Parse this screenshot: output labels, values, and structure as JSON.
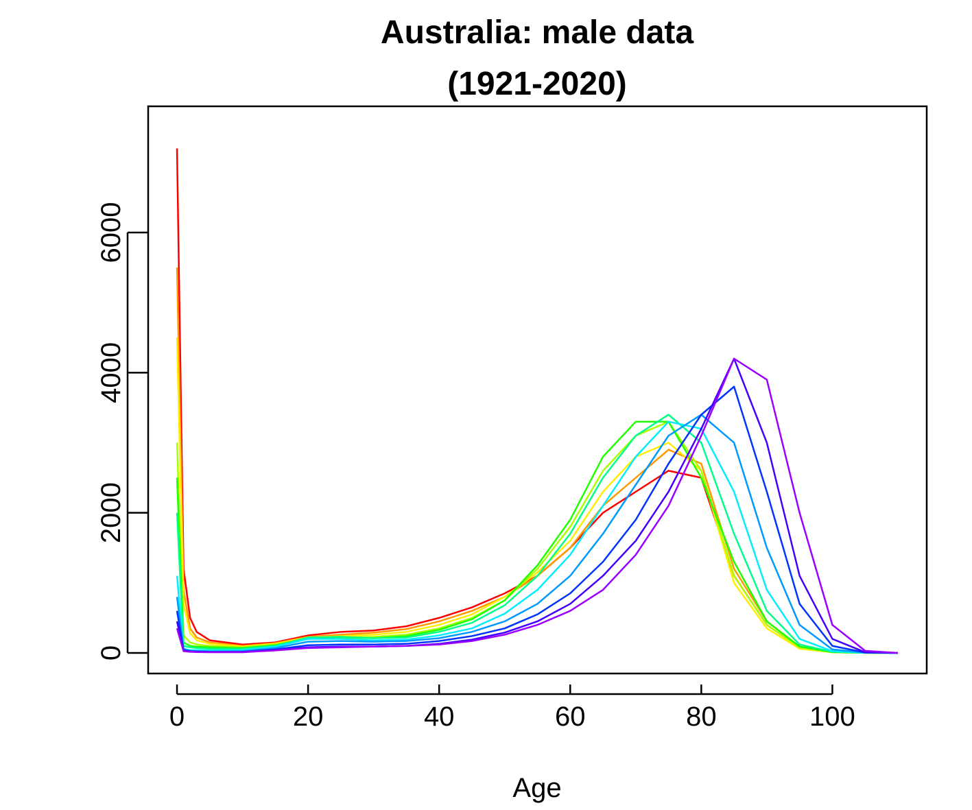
{
  "chart_data": {
    "type": "line",
    "title": [
      "Australia: male data",
      "(1921-2020)"
    ],
    "xlabel": "Age",
    "x": [
      0,
      1,
      2,
      3,
      5,
      10,
      15,
      20,
      25,
      30,
      35,
      40,
      45,
      50,
      55,
      60,
      65,
      70,
      75,
      80,
      85,
      90,
      95,
      100,
      105,
      110
    ],
    "xlim": [
      -4.4,
      114.4
    ],
    "xticks": [
      0,
      20,
      40,
      60,
      80,
      100
    ],
    "ylim": [
      -294,
      7801
    ],
    "yticks": [
      0,
      2000,
      4000,
      6000
    ],
    "grid": false,
    "series": [
      {
        "color": "#ff0000",
        "values": [
          7200,
          1200,
          500,
          300,
          180,
          120,
          150,
          250,
          300,
          320,
          380,
          500,
          650,
          850,
          1100,
          1500,
          2000,
          2300,
          2600,
          2500,
          1100,
          400,
          80,
          10,
          1,
          0
        ]
      },
      {
        "color": "#ff9900",
        "values": [
          5500,
          900,
          350,
          220,
          150,
          100,
          140,
          230,
          260,
          290,
          340,
          450,
          600,
          800,
          1100,
          1500,
          2100,
          2500,
          2900,
          2700,
          1200,
          450,
          90,
          12,
          1,
          0
        ]
      },
      {
        "color": "#ffee00",
        "values": [
          4500,
          700,
          280,
          180,
          130,
          90,
          130,
          220,
          240,
          260,
          300,
          400,
          550,
          800,
          1150,
          1600,
          2300,
          2800,
          3000,
          2600,
          1000,
          350,
          60,
          8,
          1,
          0
        ]
      },
      {
        "color": "#aaff00",
        "values": [
          3000,
          250,
          150,
          120,
          100,
          80,
          120,
          200,
          220,
          230,
          260,
          350,
          500,
          750,
          1200,
          1800,
          2600,
          3100,
          3300,
          2600,
          1100,
          400,
          80,
          10,
          1,
          0
        ]
      },
      {
        "color": "#22ff00",
        "values": [
          2500,
          150,
          100,
          90,
          80,
          70,
          110,
          210,
          220,
          210,
          240,
          330,
          480,
          750,
          1250,
          1900,
          2800,
          3300,
          3300,
          2500,
          1300,
          450,
          90,
          12,
          1,
          0
        ]
      },
      {
        "color": "#00ff88",
        "values": [
          2000,
          100,
          80,
          70,
          60,
          60,
          100,
          220,
          230,
          210,
          220,
          300,
          430,
          680,
          1100,
          1700,
          2500,
          3100,
          3400,
          3000,
          1700,
          600,
          120,
          15,
          1,
          0
        ]
      },
      {
        "color": "#00eeff",
        "values": [
          1100,
          60,
          40,
          40,
          35,
          40,
          90,
          200,
          200,
          180,
          190,
          250,
          350,
          560,
          900,
          1400,
          2100,
          2800,
          3300,
          3200,
          2300,
          900,
          200,
          25,
          2,
          0
        ]
      },
      {
        "color": "#0099ff",
        "values": [
          800,
          50,
          30,
          25,
          20,
          25,
          70,
          160,
          170,
          160,
          170,
          210,
          300,
          450,
          700,
          1100,
          1700,
          2400,
          3100,
          3400,
          3000,
          1500,
          400,
          50,
          4,
          0
        ]
      },
      {
        "color": "#0033ff",
        "values": [
          600,
          40,
          25,
          20,
          15,
          15,
          50,
          110,
          120,
          120,
          130,
          170,
          240,
          350,
          550,
          850,
          1300,
          1900,
          2700,
          3400,
          3800,
          2300,
          700,
          100,
          6,
          0
        ]
      },
      {
        "color": "#4400ff",
        "values": [
          450,
          30,
          20,
          15,
          12,
          12,
          40,
          80,
          90,
          90,
          100,
          130,
          190,
          290,
          450,
          700,
          1100,
          1600,
          2300,
          3200,
          4200,
          3000,
          1100,
          200,
          10,
          0
        ]
      },
      {
        "color": "#9900ff",
        "values": [
          350,
          25,
          15,
          12,
          10,
          10,
          35,
          70,
          80,
          90,
          100,
          120,
          170,
          260,
          400,
          600,
          900,
          1400,
          2100,
          3100,
          4200,
          3900,
          2000,
          400,
          30,
          0
        ]
      }
    ]
  }
}
